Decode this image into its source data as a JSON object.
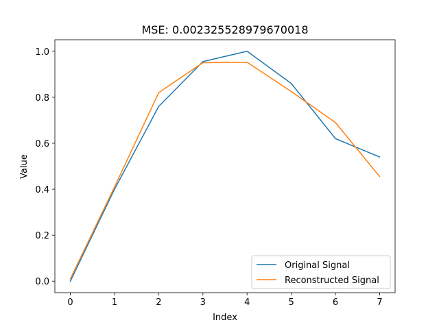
{
  "chart_data": {
    "type": "line",
    "title": "MSE: 0.002325528979670018",
    "xlabel": "Index",
    "ylabel": "Value",
    "xlim": [
      -0.35,
      7.35
    ],
    "ylim": [
      -0.05,
      1.05
    ],
    "xticks": [
      0,
      1,
      2,
      3,
      4,
      5,
      6,
      7
    ],
    "xtick_labels": [
      "0",
      "1",
      "2",
      "3",
      "4",
      "5",
      "6",
      "7"
    ],
    "yticks": [
      0.0,
      0.2,
      0.4,
      0.6,
      0.8,
      1.0
    ],
    "ytick_labels": [
      "0.0",
      "0.2",
      "0.4",
      "0.6",
      "0.8",
      "1.0"
    ],
    "grid": false,
    "legend_position": "lower-right",
    "series": [
      {
        "name": "Original Signal",
        "color": "#1f77b4",
        "x": [
          0,
          1,
          2,
          3,
          4,
          5,
          6,
          7
        ],
        "values": [
          0.0,
          0.4,
          0.76,
          0.955,
          1.0,
          0.86,
          0.62,
          0.54
        ]
      },
      {
        "name": "Reconstructed Signal",
        "color": "#ff7f0e",
        "x": [
          0,
          1,
          2,
          3,
          4,
          5,
          6,
          7
        ],
        "values": [
          0.01,
          0.41,
          0.82,
          0.95,
          0.952,
          0.825,
          0.69,
          0.455
        ]
      }
    ]
  }
}
